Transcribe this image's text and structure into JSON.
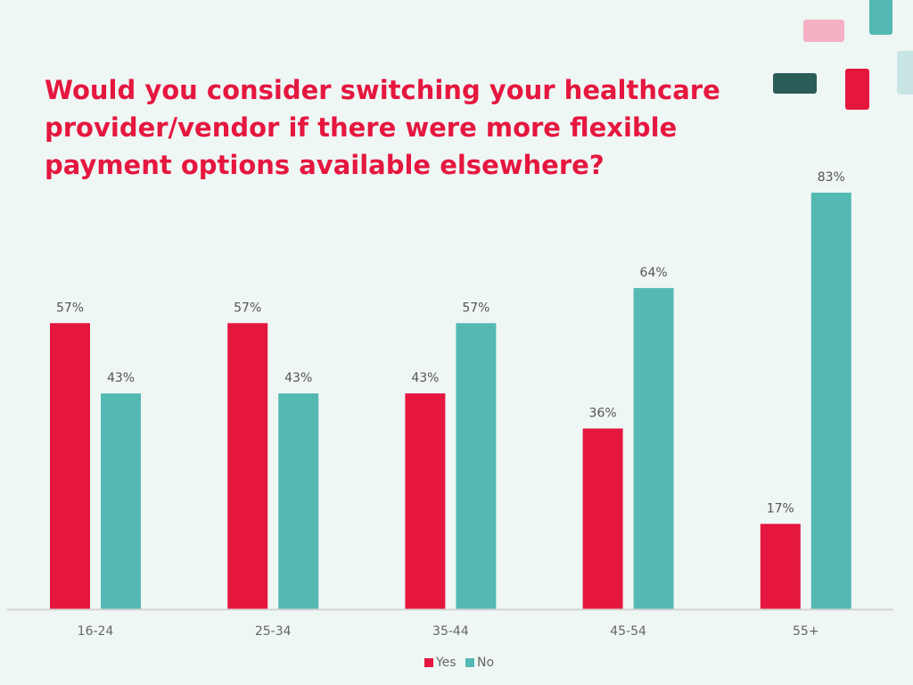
{
  "chart_data": {
    "type": "bar",
    "title": "Would you consider switching your healthcare provider/vendor if there were more flexible payment options available elsewhere?",
    "categories": [
      "16-24",
      "25-34",
      "35-44",
      "45-54",
      "55+"
    ],
    "series": [
      {
        "name": "Yes",
        "color": "#e5173f",
        "values": [
          57,
          57,
          43,
          36,
          17
        ],
        "labels": [
          "57%",
          "57%",
          "43%",
          "36%",
          "17%"
        ]
      },
      {
        "name": "No",
        "color": "#55b9b3",
        "values": [
          43,
          43,
          57,
          64,
          83
        ],
        "labels": [
          "43%",
          "43%",
          "57%",
          "64%",
          "83%"
        ]
      }
    ],
    "ylim": [
      0,
      83
    ],
    "value_format": "percent",
    "grid": false,
    "legend": "bottom"
  },
  "decoration_colors": [
    "#f4b1c3",
    "#55b9b3",
    "#2a5c58",
    "#e5173f",
    "#c8e5e4"
  ]
}
